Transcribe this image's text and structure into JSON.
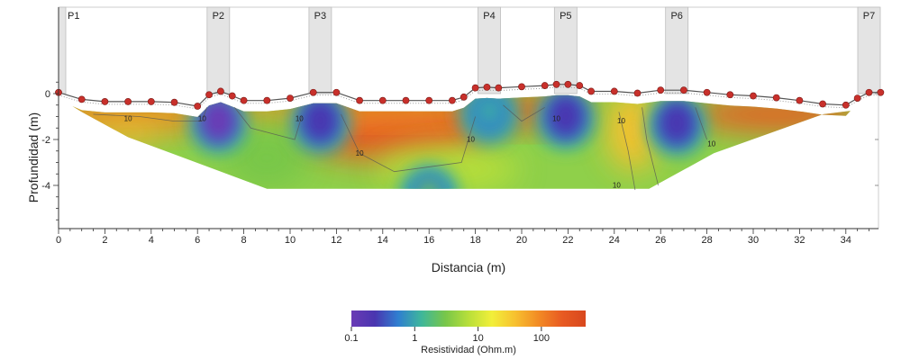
{
  "chart_data": {
    "type": "heatmap",
    "xlabel": "Distancia (m)",
    "ylabel": "Profundidad (m)",
    "xlim": [
      0,
      35.5
    ],
    "ylim": [
      -5.8,
      0.6
    ],
    "x_ticks": [
      0,
      2,
      4,
      6,
      8,
      10,
      12,
      14,
      16,
      18,
      20,
      22,
      24,
      26,
      28,
      30,
      32,
      34
    ],
    "y_ticks": [
      0,
      -2,
      -4
    ],
    "y_tick_labels": [
      "0",
      "-2",
      "-4"
    ],
    "grid": false,
    "poles": [
      {
        "label": "P1",
        "x": 0.1
      },
      {
        "label": "P2",
        "x": 6.9
      },
      {
        "label": "P3",
        "x": 11.3
      },
      {
        "label": "P4",
        "x": 18.6
      },
      {
        "label": "P5",
        "x": 21.9
      },
      {
        "label": "P6",
        "x": 26.7
      },
      {
        "label": "P7",
        "x": 35.0
      }
    ],
    "surface_profile": {
      "x": [
        0,
        1,
        2,
        3,
        4,
        5,
        6,
        6.5,
        7,
        7.5,
        8,
        9,
        10,
        11,
        12,
        13,
        14,
        15,
        16,
        17,
        17.5,
        18,
        18.5,
        19,
        20,
        21,
        21.5,
        22,
        22.5,
        23,
        24,
        25,
        26,
        27,
        28,
        29,
        30,
        31,
        32,
        33,
        34,
        34.5,
        35,
        35.5
      ],
      "y": [
        0.05,
        -0.25,
        -0.35,
        -0.35,
        -0.35,
        -0.38,
        -0.55,
        -0.05,
        0.1,
        -0.1,
        -0.3,
        -0.3,
        -0.2,
        0.05,
        0.05,
        -0.3,
        -0.3,
        -0.3,
        -0.3,
        -0.3,
        -0.15,
        0.25,
        0.28,
        0.25,
        0.3,
        0.35,
        0.4,
        0.4,
        0.35,
        0.1,
        0.1,
        0.02,
        0.15,
        0.15,
        0.05,
        -0.05,
        -0.1,
        -0.18,
        -0.3,
        -0.45,
        -0.5,
        -0.2,
        0.05,
        0.05
      ]
    },
    "model_base_depth": -4.15,
    "anomalies": [
      {
        "x": 6.9,
        "y": -1.1,
        "resistivity": 0.15
      },
      {
        "x": 11.3,
        "y": -1.1,
        "resistivity": 0.2
      },
      {
        "x": 18.6,
        "y": -0.7,
        "resistivity": 1
      },
      {
        "x": 21.9,
        "y": -0.9,
        "resistivity": 0.3
      },
      {
        "x": 26.7,
        "y": -1.2,
        "resistivity": 0.2
      },
      {
        "x": 14.5,
        "y": -1.6,
        "resistivity": 300
      },
      {
        "x": 16,
        "y": -4.2,
        "resistivity": 2
      }
    ],
    "contour_value_label": "10",
    "colorbar": {
      "title": "Resistividad (Ohm.m)",
      "tick_labels": [
        "0.1",
        "1",
        "10",
        "100"
      ],
      "tick_values": [
        0.1,
        1,
        10,
        100
      ],
      "range": [
        0.1,
        500
      ],
      "scale": "log",
      "colors": [
        "#6a3bb5",
        "#4a35b0",
        "#2f7fd0",
        "#3fb79a",
        "#77c64a",
        "#b8df3a",
        "#f2ef3a",
        "#f7c02f",
        "#f28a24",
        "#e85a22",
        "#d8481e"
      ]
    }
  }
}
